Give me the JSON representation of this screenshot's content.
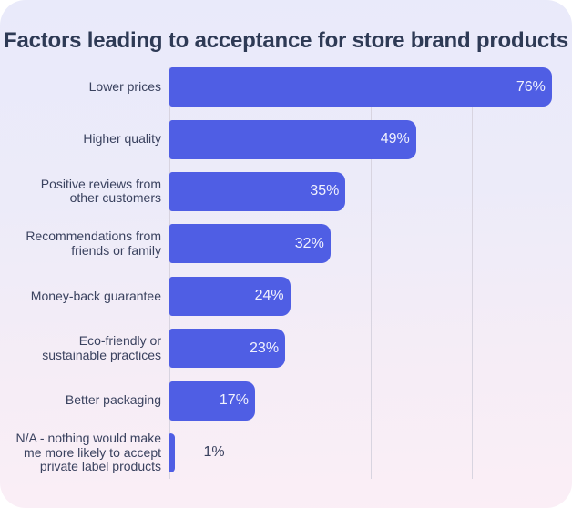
{
  "page": {
    "background": "#ffffff"
  },
  "card": {
    "corner_radius": 28,
    "gradient_top": "#e9eafa",
    "gradient_bottom": "#fbeef6"
  },
  "chart_data": {
    "type": "bar",
    "orientation": "horizontal",
    "title": "Factors leading to acceptance for store brand products",
    "categories": [
      "Lower prices",
      "Higher quality",
      "Positive reviews from other customers",
      "Recommendations from friends or family",
      "Money-back guarantee",
      "Eco-friendly or sustainable practices",
      "Better packaging",
      "N/A - nothing would make me more likely to accept private label products"
    ],
    "category_lines": [
      [
        "Lower prices"
      ],
      [
        "Higher quality"
      ],
      [
        "Positive reviews from",
        "other customers"
      ],
      [
        "Recommendations from",
        "friends or family"
      ],
      [
        "Money-back guarantee"
      ],
      [
        "Eco-friendly or",
        "sustainable practices"
      ],
      [
        "Better packaging"
      ],
      [
        "N/A - nothing would make",
        "me more likely to accept",
        "private label products"
      ]
    ],
    "values": [
      76,
      49,
      35,
      32,
      24,
      23,
      17,
      1
    ],
    "value_labels": [
      "76%",
      "49%",
      "35%",
      "32%",
      "24%",
      "23%",
      "17%",
      "1%"
    ],
    "xlabel": "",
    "ylabel": "",
    "xlim": [
      0,
      80
    ],
    "gridline_step_pct": 20,
    "grid_on": true,
    "legend": "none",
    "colors": {
      "bar": "#4f5ee4",
      "value_label_inside": "#f0f1fd",
      "value_label_outside": "#3a425f",
      "category_label": "#3a425f",
      "title": "#2e3a55",
      "gridline": "#d8d4e0"
    }
  }
}
